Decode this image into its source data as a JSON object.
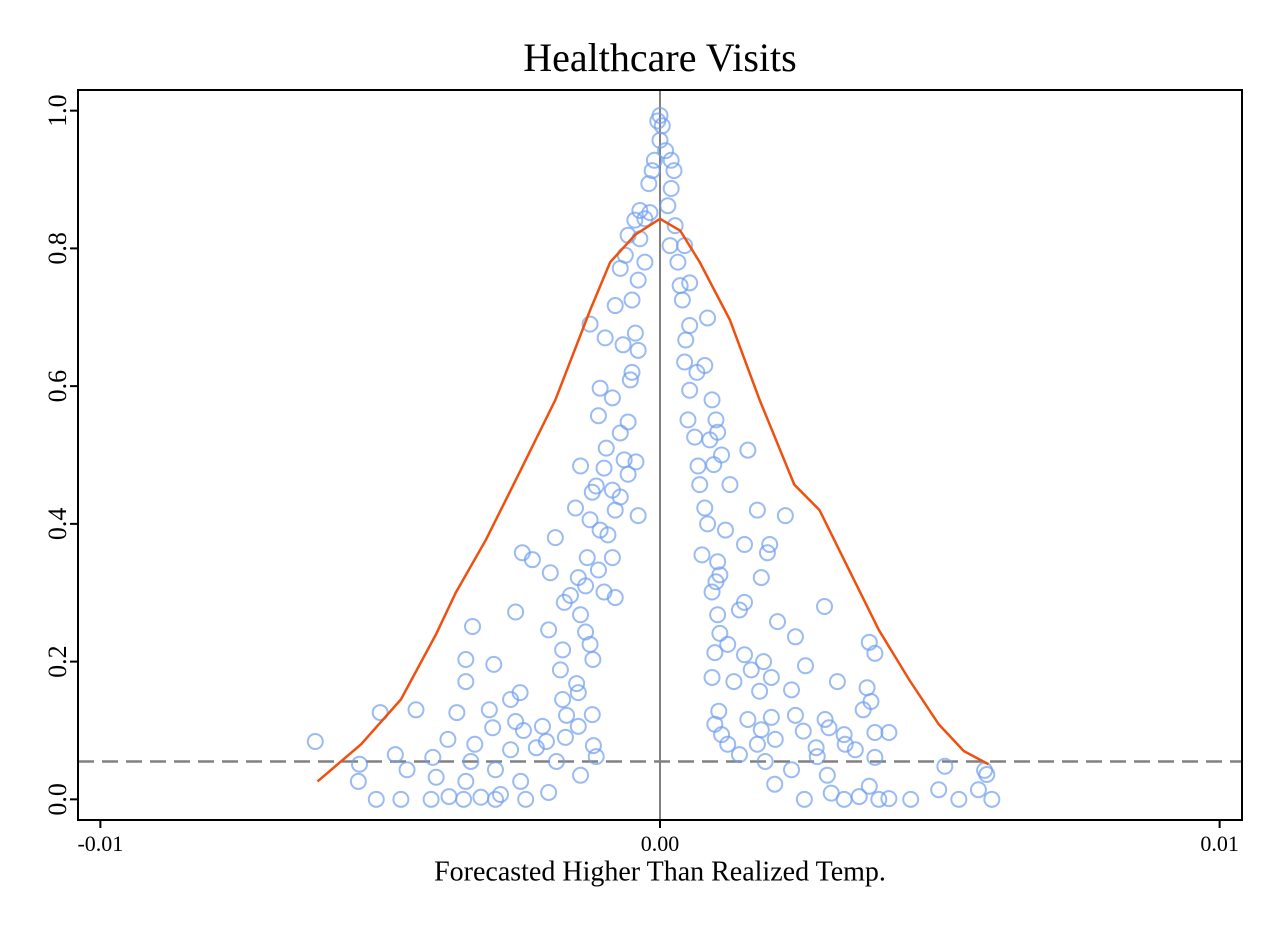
{
  "chart_data": {
    "type": "scatter",
    "title": "Healthcare Visits",
    "xlabel": "Forecasted Higher Than Realized Temp.",
    "xlim": [
      -0.0104,
      0.0104
    ],
    "ylim": [
      -0.03,
      1.03
    ],
    "xticks": [
      -0.01,
      {
        "value": 0,
        "label": "0.00"
      },
      0.01
    ],
    "yticks": [
      {
        "value": 0,
        "label": "0.0"
      },
      0.2,
      0.4,
      0.6,
      0.8,
      {
        "value": 1,
        "label": "1.0"
      }
    ],
    "vline": 0,
    "hline": 0.055,
    "series": [
      {
        "type": "scatter",
        "color": "#6f9ef0",
        "x": [
          0,
          -4e-05,
          4e-05,
          0,
          0.0001,
          -0.0001,
          0.0002,
          -0.00014,
          0.00025,
          -0.0002,
          0.0002,
          0.00014,
          -0.00036,
          -0.00018,
          -0.00027,
          0.00027,
          -0.00045,
          -0.00057,
          -0.00036,
          0.00018,
          0.00044,
          -0.00062,
          -0.00027,
          0.00032,
          -0.00071,
          -0.00039,
          0.00036,
          0.00053,
          -0.0005,
          -0.0008,
          0.0004,
          0.00085,
          0.00053,
          -0.00125,
          -0.00044,
          -0.00098,
          -0.00066,
          -0.00039,
          0.00046,
          0.00044,
          0.00066,
          -0.0005,
          0.0008,
          -0.00107,
          -0.00053,
          0.00053,
          0.00093,
          -0.00085,
          -0.0011,
          -0.00057,
          0.0005,
          0.001,
          -0.00071,
          0.00062,
          0.00089,
          0.00103,
          -0.00096,
          0.00157,
          -0.00064,
          -0.00043,
          0.00068,
          0.00096,
          -0.00142,
          -0.001,
          -0.00057,
          0.0011,
          -0.00114,
          -0.00085,
          0.00071,
          0.00125,
          -0.00071,
          -0.00121,
          0.0008,
          -0.00151,
          -0.0008,
          0.00174,
          0.00224,
          -0.00039,
          -0.00125,
          0.00085,
          -0.00107,
          0.00117,
          -0.00187,
          -0.00093,
          0.00151,
          0.00196,
          -0.00246,
          -0.0013,
          -0.00085,
          0.00075,
          0.00192,
          -0.00228,
          0.00103,
          -0.0011,
          0.00107,
          -0.00196,
          -0.00146,
          0.00181,
          -0.00133,
          0.001,
          -0.001,
          -0.0016,
          -0.0008,
          0.00093,
          -0.00171,
          0.00151,
          0.00294,
          0.00142,
          -0.00258,
          -0.00142,
          0.00103,
          0.0021,
          -0.00335,
          -0.00199,
          -0.00133,
          0.00107,
          0.00242,
          0.00374,
          -0.00125,
          0.00121,
          -0.00174,
          0.00098,
          0.00384,
          -0.00347,
          -0.0012,
          0.00151,
          0.00185,
          -0.00297,
          0.0026,
          -0.00178,
          0.00163,
          0.00093,
          0.00199,
          -0.00347,
          -0.00149,
          0.00317,
          0.00132,
          0.00235,
          0.0037,
          -0.0025,
          -0.00146,
          0.00178,
          -0.00267,
          -0.00174,
          0.00377,
          -0.00436,
          -0.005,
          -0.00305,
          0.00363,
          0.00105,
          -0.00363,
          -0.00121,
          -0.00167,
          0.00242,
          0.00157,
          0.00199,
          0.00295,
          -0.00258,
          0.00098,
          -0.0021,
          -0.00146,
          -0.00299,
          0.00302,
          0.00181,
          -0.00244,
          0.00256,
          0.00409,
          0.00329,
          0.0011,
          0.00384,
          -0.00169,
          -0.00379,
          -0.00203,
          -0.00616,
          0.00206,
          0.00331,
          0.00121,
          -0.00331,
          -0.00119,
          0.00174,
          0.00279,
          -0.00267,
          0.00349,
          -0.00221,
          -0.00473,
          -0.00406,
          -0.00114,
          0.00281,
          0.00384,
          0.00142,
          -0.00338,
          -0.00185,
          -0.00537,
          0.00188,
          0.00509,
          -0.00452,
          -0.00294,
          0.00235,
          0.0058,
          -0.004,
          -0.00142,
          0.00299,
          0.00584,
          -0.00539,
          -0.00347,
          -0.00249,
          0.00205,
          0.00374,
          0.00498,
          -0.00199,
          0.00569,
          0.00306,
          -0.00285,
          -0.00507,
          -0.00463,
          -0.00409,
          -0.00351,
          -0.00294,
          -0.0024,
          0.00258,
          0.00329,
          0.00391,
          0.00448,
          0.00534,
          0.00593,
          -0.00377,
          -0.0032,
          0.00356,
          0.00409
        ],
        "values": [
          0.993,
          0.985,
          0.978,
          0.957,
          0.942,
          0.928,
          0.928,
          0.913,
          0.913,
          0.894,
          0.887,
          0.862,
          0.855,
          0.852,
          0.843,
          0.833,
          0.841,
          0.819,
          0.814,
          0.804,
          0.804,
          0.79,
          0.78,
          0.78,
          0.771,
          0.754,
          0.746,
          0.75,
          0.725,
          0.717,
          0.725,
          0.699,
          0.688,
          0.69,
          0.677,
          0.67,
          0.66,
          0.652,
          0.667,
          0.635,
          0.62,
          0.62,
          0.63,
          0.597,
          0.609,
          0.594,
          0.58,
          0.583,
          0.557,
          0.548,
          0.551,
          0.551,
          0.532,
          0.526,
          0.522,
          0.533,
          0.51,
          0.507,
          0.493,
          0.49,
          0.484,
          0.486,
          0.484,
          0.481,
          0.472,
          0.5,
          0.455,
          0.449,
          0.457,
          0.457,
          0.439,
          0.446,
          0.423,
          0.423,
          0.42,
          0.42,
          0.412,
          0.412,
          0.406,
          0.4,
          0.391,
          0.391,
          0.38,
          0.384,
          0.37,
          0.37,
          0.358,
          0.351,
          0.351,
          0.355,
          0.358,
          0.348,
          0.345,
          0.333,
          0.326,
          0.329,
          0.322,
          0.322,
          0.31,
          0.316,
          0.301,
          0.296,
          0.293,
          0.301,
          0.286,
          0.286,
          0.28,
          0.275,
          0.272,
          0.268,
          0.268,
          0.258,
          0.251,
          0.246,
          0.243,
          0.241,
          0.236,
          0.228,
          0.225,
          0.225,
          0.217,
          0.213,
          0.212,
          0.203,
          0.203,
          0.21,
          0.2,
          0.196,
          0.194,
          0.188,
          0.188,
          0.177,
          0.177,
          0.171,
          0.168,
          0.171,
          0.171,
          0.159,
          0.162,
          0.155,
          0.155,
          0.157,
          0.145,
          0.145,
          0.142,
          0.13,
          0.126,
          0.13,
          0.13,
          0.128,
          0.126,
          0.123,
          0.122,
          0.122,
          0.116,
          0.119,
          0.116,
          0.113,
          0.109,
          0.106,
          0.106,
          0.104,
          0.104,
          0.101,
          0.1,
          0.099,
          0.097,
          0.094,
          0.094,
          0.097,
          0.09,
          0.087,
          0.084,
          0.084,
          0.087,
          0.08,
          0.08,
          0.08,
          0.078,
          0.08,
          0.075,
          0.072,
          0.072,
          0.075,
          0.065,
          0.061,
          0.062,
          0.062,
          0.061,
          0.065,
          0.055,
          0.055,
          0.051,
          0.055,
          0.048,
          0.043,
          0.043,
          0.043,
          0.042,
          0.032,
          0.035,
          0.035,
          0.036,
          0.026,
          0.026,
          0.026,
          0.022,
          0.019,
          0.014,
          0.01,
          0.014,
          0.009,
          0.007,
          0,
          0,
          0,
          0,
          0,
          0,
          0,
          0,
          0,
          0,
          0,
          0,
          0.004,
          0.003,
          0.004,
          0.001
        ]
      },
      {
        "type": "line",
        "color": "#f0500f",
        "x": [
          -0.00612,
          -0.00534,
          -0.00463,
          -0.004,
          -0.00365,
          -0.00311,
          -0.00249,
          -0.00187,
          -0.00125,
          -0.00089,
          -0.00044,
          0,
          0.00036,
          0.00071,
          0.00125,
          0.00178,
          0.0024,
          0.00285,
          0.00338,
          0.00391,
          0.00445,
          0.00498,
          0.00543,
          0.00587
        ],
        "values": [
          0.026,
          0.08,
          0.145,
          0.24,
          0.3,
          0.377,
          0.478,
          0.58,
          0.71,
          0.78,
          0.82,
          0.843,
          0.826,
          0.78,
          0.696,
          0.58,
          0.457,
          0.42,
          0.333,
          0.246,
          0.174,
          0.109,
          0.07,
          0.051
        ]
      }
    ]
  }
}
